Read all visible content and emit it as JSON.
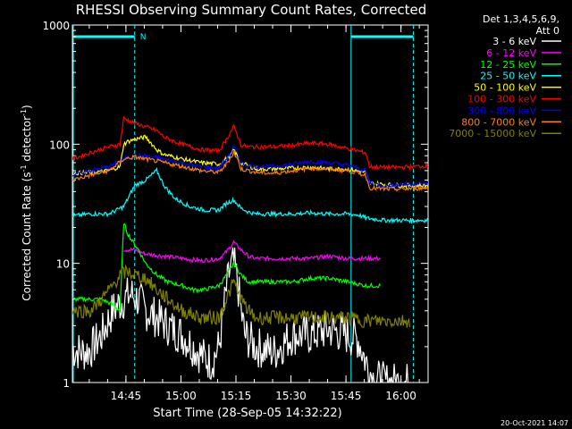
{
  "chart_data": {
    "type": "line",
    "title": "RHESSI Observing Summary Count Rates, Corrected",
    "xlabel": "Start Time (28-Sep-05 14:32:22)",
    "ylabel_main": "Corrected Count Rate (s",
    "ylabel_sup1": "-1",
    "ylabel_mid": " detector",
    "ylabel_sup2": "-1",
    "ylabel_end": ")",
    "yscale": "log",
    "ylim": [
      1,
      1000
    ],
    "xlim_minutes": [
      0,
      97
    ],
    "xticks": [
      {
        "t": 14.6,
        "label": "14:45"
      },
      {
        "t": 29.6,
        "label": "15:00"
      },
      {
        "t": 44.6,
        "label": "15:15"
      },
      {
        "t": 59.6,
        "label": "15:30"
      },
      {
        "t": 74.6,
        "label": "15:45"
      },
      {
        "t": 89.6,
        "label": "16:00"
      }
    ],
    "yticks": [
      {
        "v": 1,
        "label": "1"
      },
      {
        "v": 10,
        "label": "10"
      },
      {
        "v": 100,
        "label": "100"
      },
      {
        "v": 1000,
        "label": "1000"
      }
    ],
    "legend_header": [
      "Det 1,3,4,5,6,9,",
      "Att 0"
    ],
    "flag_label": "N",
    "timestamp": "20-Oct-2021 14:07",
    "saa_intervals": [
      [
        0,
        17
      ],
      [
        76,
        93
      ]
    ],
    "dashed_markers": [
      17,
      93
    ],
    "series": [
      {
        "name": "3 - 6 keV",
        "color": "#ffffff",
        "t": [
          0,
          3,
          5,
          8,
          11,
          14,
          16,
          18,
          20,
          23,
          26,
          30,
          33,
          36,
          38,
          40,
          41,
          42,
          43,
          44,
          45,
          46,
          47,
          50,
          55,
          60,
          65,
          70,
          75,
          78,
          80,
          82,
          85,
          88,
          92
        ],
        "values": [
          1.9,
          1.8,
          1.9,
          2.5,
          4,
          5,
          5.5,
          5,
          4,
          3.5,
          3,
          2.5,
          2,
          1.6,
          1.5,
          2,
          3.5,
          6,
          9,
          10,
          7,
          4,
          2.5,
          2,
          1.8,
          2.5,
          2.5,
          2.8,
          2.5,
          2.3,
          1.5,
          1.1,
          1.0,
          1.0,
          1.0
        ]
      },
      {
        "name": "6 - 12 keV",
        "color": "#ff00ff",
        "t": [
          14,
          17,
          20,
          25,
          30,
          35,
          40,
          42,
          44,
          46,
          48,
          50,
          55,
          60,
          65,
          70,
          75,
          80,
          84
        ],
        "values": [
          13,
          13,
          12,
          11.5,
          11,
          10.5,
          11,
          12.5,
          15,
          13,
          11.5,
          11,
          11,
          11,
          11,
          11.5,
          11,
          11,
          11
        ]
      },
      {
        "name": "12 - 25 keV",
        "color": "#00ff00",
        "t": [
          0,
          4,
          8,
          11,
          13,
          14,
          15,
          16,
          18,
          20,
          23,
          26,
          30,
          33,
          36,
          40,
          42,
          44,
          45,
          46,
          48,
          50,
          55,
          60,
          65,
          70,
          75,
          80,
          84
        ],
        "values": [
          5,
          5,
          5,
          4.5,
          4,
          22,
          18,
          16,
          13,
          10,
          8,
          7,
          6.5,
          6,
          6,
          6.5,
          8,
          10,
          9,
          8,
          7,
          7,
          7,
          7,
          7.5,
          7.5,
          7,
          6.5,
          6.5
        ]
      },
      {
        "name": "25 - 50 keV",
        "color": "#00ffff",
        "t": [
          0,
          5,
          10,
          14,
          17,
          20,
          23,
          25,
          28,
          32,
          36,
          40,
          42,
          44,
          46,
          48,
          50,
          55,
          60,
          65,
          70,
          75,
          78,
          80,
          85,
          90,
          97
        ],
        "values": [
          25,
          26,
          26,
          30,
          45,
          50,
          60,
          45,
          35,
          30,
          28,
          28,
          32,
          34,
          29,
          27,
          26,
          26,
          26,
          26.5,
          26,
          26,
          25.5,
          24,
          23,
          23,
          23
        ]
      },
      {
        "name": "50 - 100 keV",
        "color": "#ffff00",
        "t": [
          0,
          5,
          10,
          13,
          14,
          15,
          17,
          20,
          23,
          25,
          30,
          35,
          40,
          43,
          44,
          46,
          50,
          55,
          60,
          65,
          70,
          75,
          80,
          81,
          85,
          90,
          97
        ],
        "values": [
          57,
          58,
          60,
          65,
          100,
          105,
          110,
          115,
          90,
          82,
          75,
          70,
          68,
          80,
          90,
          70,
          62,
          62,
          63,
          64,
          62,
          62,
          58,
          47,
          46,
          45,
          45
        ]
      },
      {
        "name": "100 - 300 keV",
        "color": "#ff0000",
        "t": [
          0,
          5,
          10,
          13,
          14,
          15,
          17,
          20,
          23,
          25,
          28,
          30,
          35,
          40,
          42,
          44,
          45,
          46,
          48,
          50,
          55,
          60,
          65,
          70,
          75,
          80,
          81,
          85,
          90,
          97
        ],
        "values": [
          75,
          85,
          95,
          100,
          165,
          160,
          150,
          140,
          130,
          115,
          105,
          100,
          90,
          88,
          110,
          140,
          120,
          98,
          95,
          95,
          95,
          98,
          102,
          100,
          92,
          85,
          65,
          64,
          64,
          66
        ]
      },
      {
        "name": "300 - 800 keV",
        "color": "#0000ff",
        "t": [
          0,
          5,
          10,
          14,
          17,
          20,
          25,
          30,
          35,
          40,
          42,
          44,
          45,
          46,
          48,
          50,
          55,
          60,
          65,
          70,
          75,
          80,
          81,
          85,
          90,
          97
        ],
        "values": [
          55,
          60,
          65,
          75,
          80,
          80,
          75,
          70,
          65,
          63,
          75,
          95,
          85,
          70,
          66,
          65,
          65,
          68,
          72,
          70,
          67,
          60,
          47,
          45,
          46,
          47
        ]
      },
      {
        "name": "800 - 7000 keV",
        "color": "#ff8000",
        "t": [
          0,
          5,
          10,
          14,
          17,
          20,
          25,
          30,
          35,
          40,
          42,
          44,
          45,
          46,
          48,
          50,
          55,
          60,
          65,
          70,
          75,
          80,
          81,
          85,
          90,
          97
        ],
        "values": [
          50,
          55,
          60,
          75,
          78,
          75,
          70,
          65,
          60,
          58,
          68,
          85,
          75,
          62,
          60,
          58,
          57,
          60,
          63,
          62,
          60,
          55,
          43,
          42,
          42,
          43
        ]
      },
      {
        "name": "7000 - 15000 keV",
        "color": "#808000",
        "t": [
          0,
          5,
          8,
          11,
          13,
          15,
          17,
          20,
          23,
          26,
          30,
          35,
          40,
          42,
          44,
          46,
          48,
          50,
          55,
          60,
          65,
          70,
          75,
          80,
          85,
          90,
          92
        ],
        "values": [
          4,
          4,
          5,
          6.5,
          8,
          8.5,
          8,
          7.5,
          6,
          5,
          4,
          3.5,
          3.5,
          5,
          7,
          5,
          4,
          3.5,
          3.5,
          3.5,
          3.5,
          3.5,
          3.5,
          3.3,
          3.3,
          3.3,
          3.3
        ]
      }
    ]
  }
}
